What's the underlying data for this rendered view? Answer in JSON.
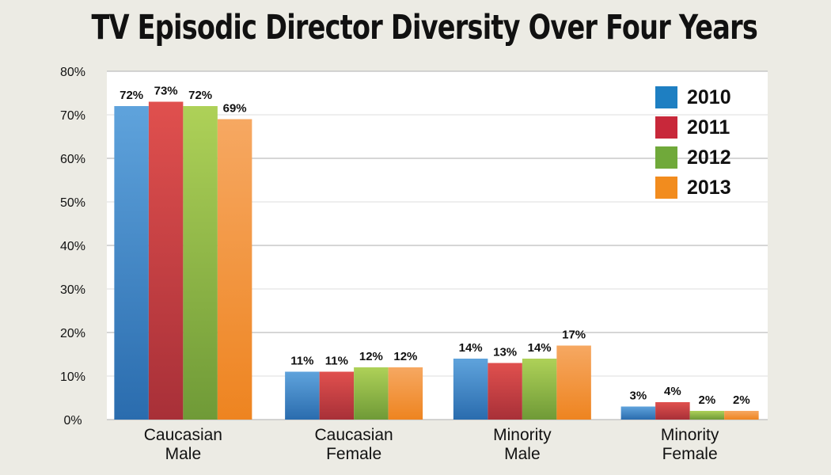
{
  "chart_data": {
    "type": "bar",
    "title": "TV Episodic Director Diversity Over Four Years",
    "categories": [
      [
        "Caucasian",
        "Male"
      ],
      [
        "Caucasian",
        "Female"
      ],
      [
        "Minority",
        "Male"
      ],
      [
        "Minority",
        "Female"
      ]
    ],
    "series": [
      {
        "name": "2010",
        "values": [
          72,
          11,
          14,
          3
        ],
        "labels": [
          "72%",
          "11%",
          "14%",
          "3%"
        ],
        "color": "#1e7fc2",
        "light": "#5fa3dc",
        "dark": "#2a6cae"
      },
      {
        "name": "2011",
        "values": [
          73,
          11,
          13,
          4
        ],
        "labels": [
          "73%",
          "11%",
          "13%",
          "4%"
        ],
        "color": "#c8283a",
        "light": "#e0504e",
        "dark": "#a83038"
      },
      {
        "name": "2012",
        "values": [
          72,
          12,
          14,
          2
        ],
        "labels": [
          "72%",
          "12%",
          "14%",
          "2%"
        ],
        "color": "#70a93a",
        "light": "#aed158",
        "dark": "#6f9a37"
      },
      {
        "name": "2013",
        "values": [
          69,
          12,
          17,
          2
        ],
        "labels": [
          "69%",
          "12%",
          "17%",
          "2%"
        ],
        "color": "#f28c1e",
        "light": "#f6a862",
        "dark": "#ee8420"
      }
    ],
    "ylim": [
      0,
      80
    ],
    "yticks": [
      "0%",
      "10%",
      "20%",
      "30%",
      "40%",
      "50%",
      "60%",
      "70%",
      "80%"
    ],
    "grid": true,
    "legend_position": "top-right"
  }
}
